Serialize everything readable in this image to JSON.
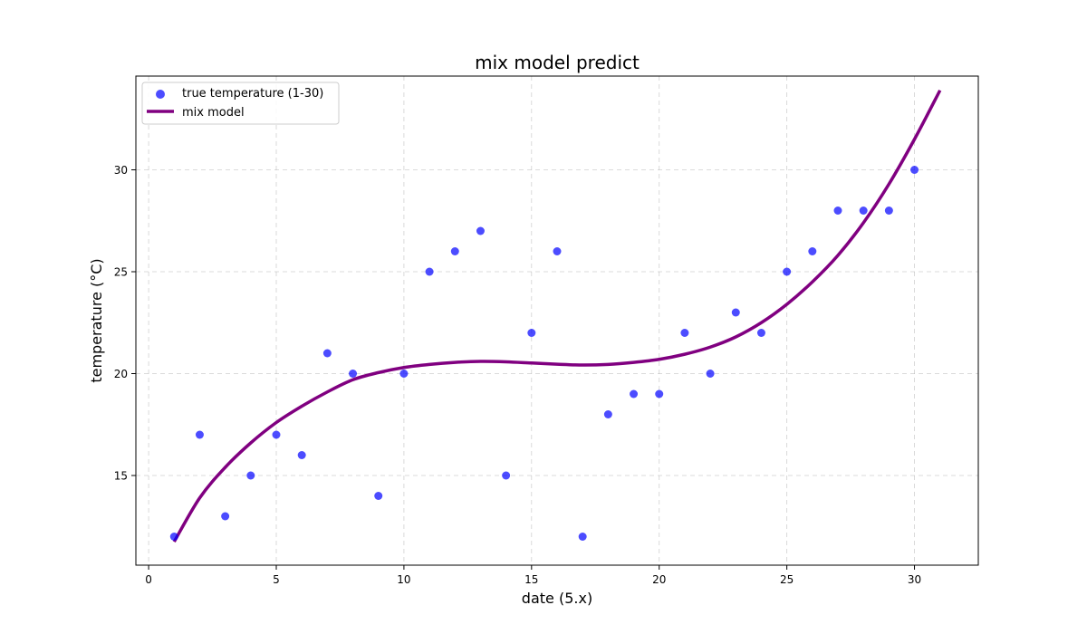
{
  "chart_data": {
    "type": "scatter",
    "title": "mix model predict",
    "xlabel": "date (5.x)",
    "ylabel": "temperature (°C)",
    "xlim": [
      -0.5,
      32.5
    ],
    "ylim": [
      10.6,
      34.6
    ],
    "xticks": [
      0,
      5,
      10,
      15,
      20,
      25,
      30
    ],
    "yticks": [
      15,
      20,
      25,
      30
    ],
    "grid": true,
    "legend_position": "top-left",
    "series": [
      {
        "name": "true temperature (1-30)",
        "type": "scatter",
        "color": "#0000ff",
        "x": [
          1,
          2,
          3,
          4,
          5,
          6,
          7,
          8,
          9,
          10,
          11,
          12,
          13,
          14,
          15,
          16,
          17,
          18,
          19,
          20,
          21,
          22,
          23,
          24,
          25,
          26,
          27,
          28,
          29,
          30
        ],
        "y": [
          12,
          17,
          13,
          15,
          17,
          16,
          21,
          20,
          14,
          20,
          25,
          26,
          27,
          15,
          22,
          26,
          12,
          18,
          19,
          19,
          22,
          20,
          23,
          22,
          25,
          26,
          28,
          28,
          28,
          30
        ]
      },
      {
        "name": "mix model",
        "type": "line",
        "color": "#800080",
        "x": [
          1,
          2,
          3,
          4,
          5,
          6,
          7,
          8,
          9,
          10,
          11,
          12,
          13,
          14,
          15,
          16,
          17,
          18,
          19,
          20,
          21,
          22,
          23,
          24,
          25,
          26,
          27,
          28,
          29,
          30,
          31
        ],
        "y": [
          11.75,
          13.9,
          15.4,
          16.6,
          17.6,
          18.4,
          19.1,
          19.7,
          20.05,
          20.3,
          20.45,
          20.55,
          20.6,
          20.58,
          20.52,
          20.46,
          20.42,
          20.45,
          20.55,
          20.7,
          20.95,
          21.3,
          21.8,
          22.5,
          23.4,
          24.5,
          25.8,
          27.4,
          29.3,
          31.5,
          33.9
        ]
      }
    ]
  }
}
